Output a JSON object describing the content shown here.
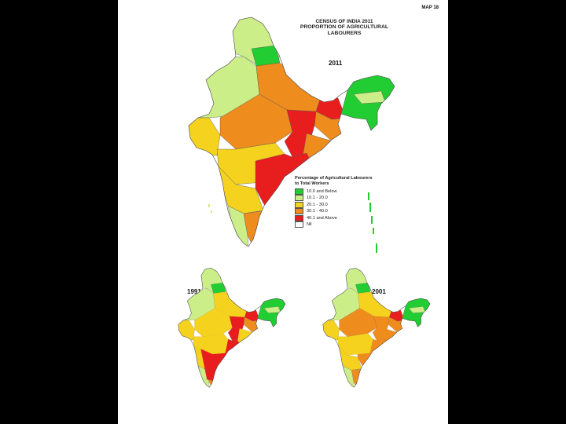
{
  "page_label": "MAP 18",
  "title": {
    "line1": "CENSUS OF INDIA 2011",
    "line2": "PROPORTION OF AGRICULTURAL",
    "line3": "LABOURERS"
  },
  "maps": [
    {
      "year": "2011"
    },
    {
      "year": "1991"
    },
    {
      "year": "2001"
    }
  ],
  "legend": {
    "title_line1": "Percentage of Agricultural Labourers",
    "title_line2": "to Total Workers",
    "items": [
      {
        "label": "10.0 and Below",
        "color": "#22cc33"
      },
      {
        "label": "10.1 - 20.0",
        "color": "#ccee88"
      },
      {
        "label": "20.1 - 30.0",
        "color": "#f5d21e"
      },
      {
        "label": "30.1 - 40.0",
        "color": "#ee8c1e"
      },
      {
        "label": "40.1 and Above",
        "color": "#e81e1e"
      },
      {
        "label": "Nil",
        "color": "#ffffff"
      }
    ]
  }
}
